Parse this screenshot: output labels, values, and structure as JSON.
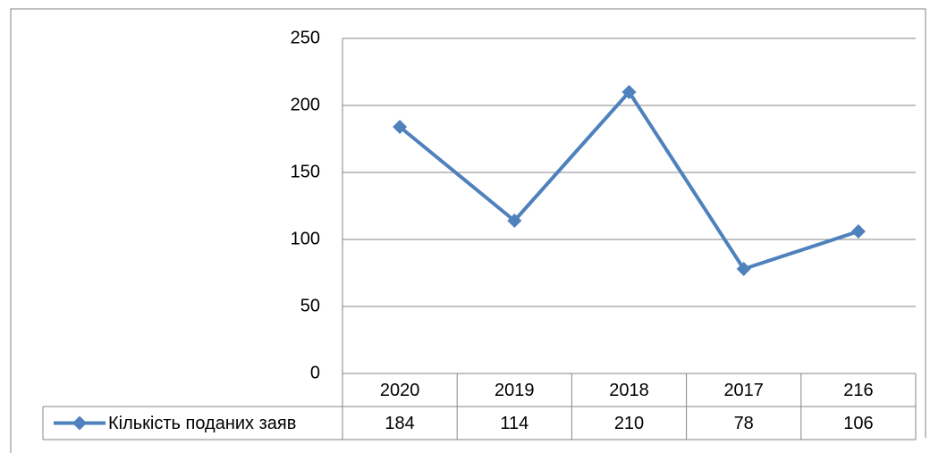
{
  "chart_data": {
    "type": "line",
    "categories": [
      "2020",
      "2019",
      "2018",
      "2017",
      "216"
    ],
    "series": [
      {
        "name": "Кількість поданих заяв",
        "color": "#4f81bd",
        "values": [
          184,
          114,
          210,
          78,
          106
        ]
      }
    ],
    "ylim": [
      0,
      250
    ],
    "yticks": [
      0,
      50,
      100,
      150,
      200,
      250
    ],
    "grid": true,
    "data_table": true
  }
}
